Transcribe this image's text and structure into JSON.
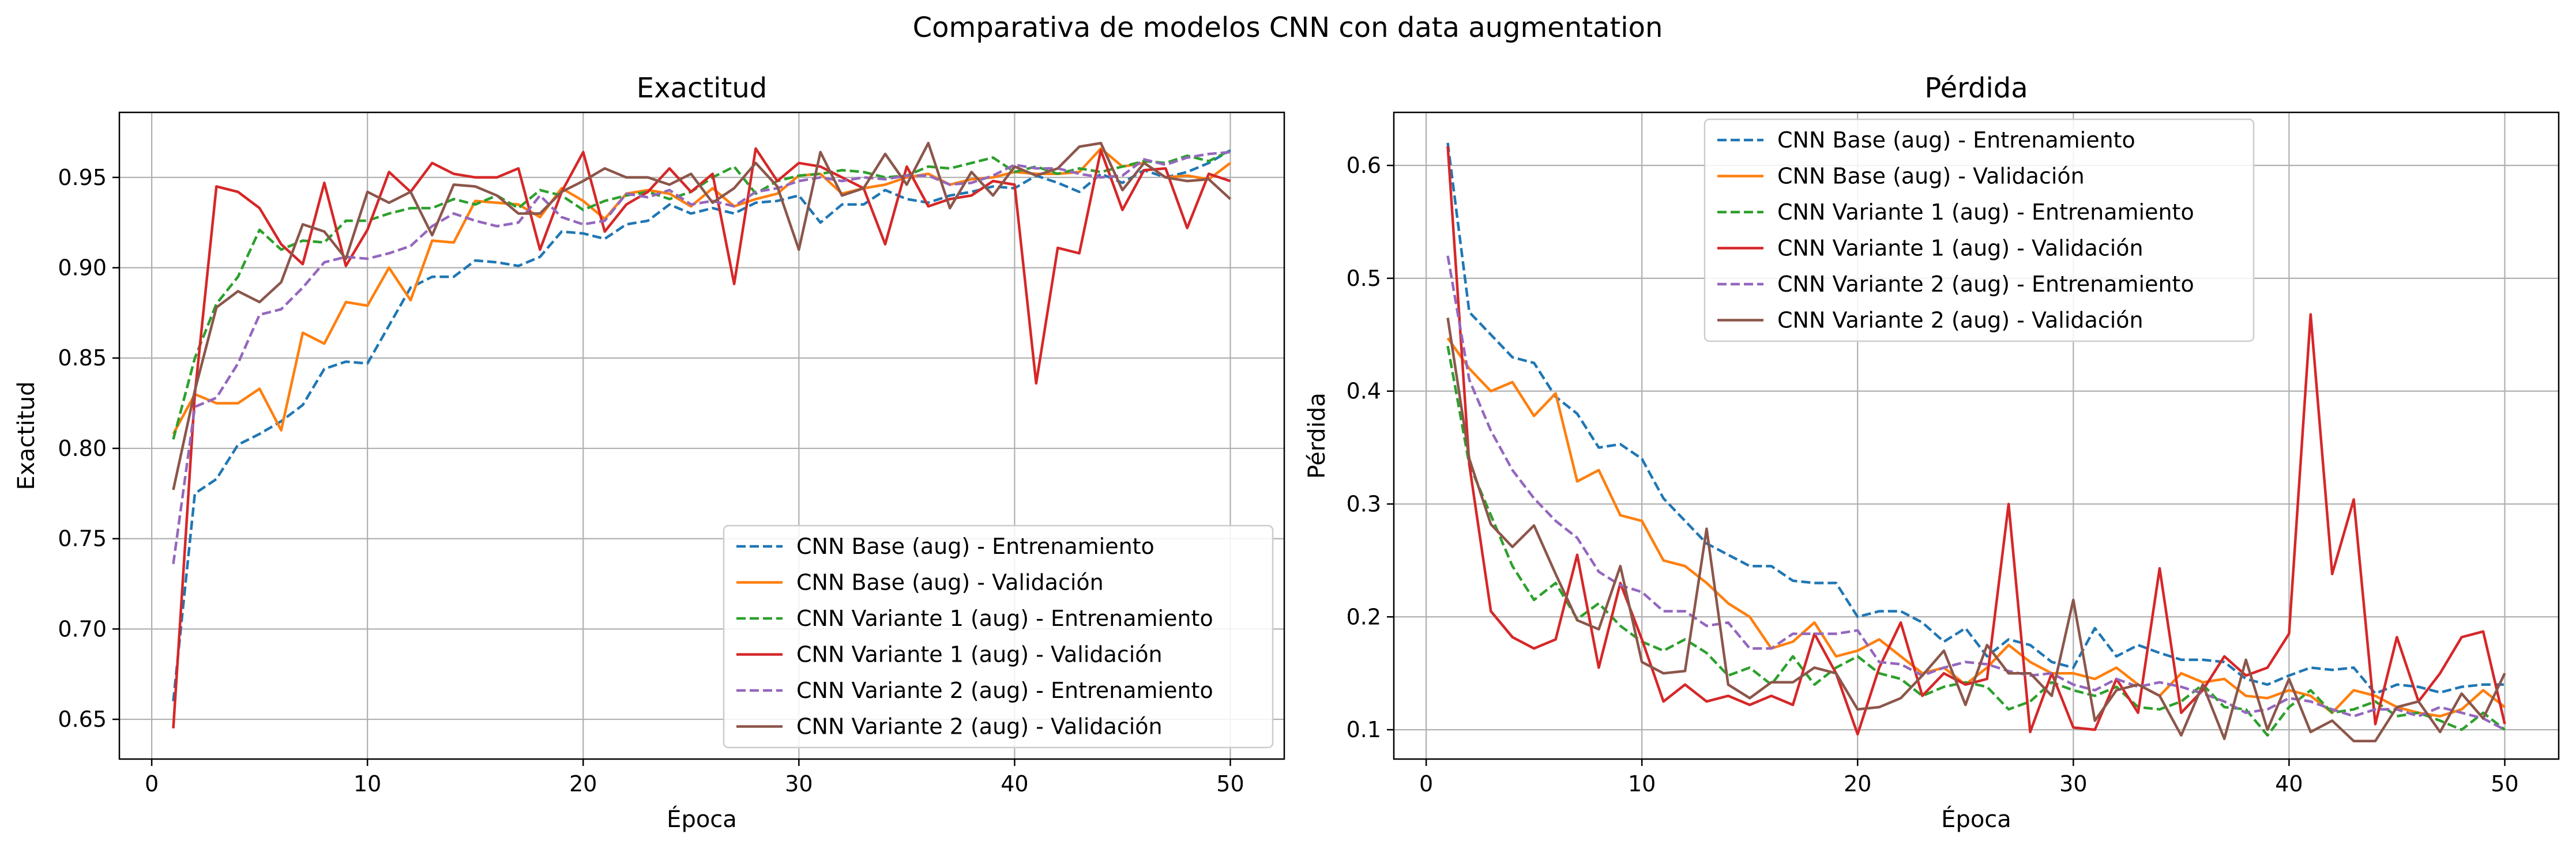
{
  "figure": {
    "suptitle": "Comparativa de modelos CNN con data augmentation"
  },
  "chart_data": [
    {
      "type": "line",
      "title": "Exactitud",
      "xlabel": "Época",
      "ylabel": "Exactitud",
      "xlim": [
        -1.5,
        52.5
      ],
      "ylim": [
        0.628,
        0.986
      ],
      "xticks": [
        0,
        10,
        20,
        30,
        40,
        50
      ],
      "yticks": [
        0.65,
        0.7,
        0.75,
        0.8,
        0.85,
        0.9,
        0.95
      ],
      "ytick_labels": [
        "0.65",
        "0.70",
        "0.75",
        "0.80",
        "0.85",
        "0.90",
        "0.95"
      ],
      "grid": true,
      "legend_position": "lower-right",
      "x": [
        1,
        2,
        3,
        4,
        5,
        6,
        7,
        8,
        9,
        10,
        11,
        12,
        13,
        14,
        15,
        16,
        17,
        18,
        19,
        20,
        21,
        22,
        23,
        24,
        25,
        26,
        27,
        28,
        29,
        30,
        31,
        32,
        33,
        34,
        35,
        36,
        37,
        38,
        39,
        40,
        41,
        42,
        43,
        44,
        45,
        46,
        47,
        48,
        49,
        50
      ],
      "series": [
        {
          "name": "CNN Base (aug) - Entrenamiento",
          "color": "#1f77b4",
          "dash": "dashed",
          "values": [
            0.66,
            0.775,
            0.783,
            0.802,
            0.808,
            0.815,
            0.824,
            0.844,
            0.848,
            0.847,
            0.868,
            0.889,
            0.895,
            0.895,
            0.904,
            0.903,
            0.901,
            0.906,
            0.92,
            0.919,
            0.916,
            0.924,
            0.926,
            0.935,
            0.93,
            0.933,
            0.93,
            0.936,
            0.937,
            0.94,
            0.925,
            0.935,
            0.935,
            0.943,
            0.938,
            0.936,
            0.94,
            0.942,
            0.945,
            0.944,
            0.951,
            0.947,
            0.942,
            0.952,
            0.947,
            0.954,
            0.95,
            0.953,
            0.958,
            0.965
          ]
        },
        {
          "name": "CNN Base (aug) - Validación",
          "color": "#ff7f0e",
          "dash": "solid",
          "values": [
            0.808,
            0.83,
            0.825,
            0.825,
            0.833,
            0.81,
            0.864,
            0.858,
            0.881,
            0.879,
            0.9,
            0.882,
            0.915,
            0.914,
            0.937,
            0.936,
            0.935,
            0.928,
            0.944,
            0.937,
            0.927,
            0.941,
            0.943,
            0.941,
            0.934,
            0.944,
            0.934,
            0.938,
            0.941,
            0.951,
            0.952,
            0.941,
            0.944,
            0.946,
            0.95,
            0.952,
            0.946,
            0.949,
            0.95,
            0.953,
            0.952,
            0.952,
            0.953,
            0.966,
            0.956,
            0.958,
            0.95,
            0.951,
            0.949,
            0.958
          ]
        },
        {
          "name": "CNN Variante 1 (aug) - Entrenamiento",
          "color": "#2ca02c",
          "dash": "dashed",
          "values": [
            0.805,
            0.85,
            0.88,
            0.895,
            0.921,
            0.91,
            0.915,
            0.914,
            0.926,
            0.926,
            0.93,
            0.933,
            0.933,
            0.938,
            0.935,
            0.94,
            0.933,
            0.943,
            0.94,
            0.932,
            0.937,
            0.94,
            0.942,
            0.938,
            0.942,
            0.95,
            0.956,
            0.941,
            0.948,
            0.951,
            0.952,
            0.954,
            0.953,
            0.95,
            0.951,
            0.956,
            0.955,
            0.958,
            0.961,
            0.953,
            0.956,
            0.952,
            0.955,
            0.953,
            0.956,
            0.959,
            0.958,
            0.962,
            0.959,
            0.965
          ]
        },
        {
          "name": "CNN Variante 1 (aug) - Validación",
          "color": "#d62728",
          "dash": "solid",
          "values": [
            0.645,
            0.83,
            0.945,
            0.942,
            0.933,
            0.913,
            0.902,
            0.947,
            0.901,
            0.921,
            0.953,
            0.942,
            0.958,
            0.952,
            0.95,
            0.95,
            0.955,
            0.91,
            0.942,
            0.964,
            0.92,
            0.935,
            0.942,
            0.955,
            0.942,
            0.952,
            0.891,
            0.966,
            0.948,
            0.958,
            0.956,
            0.95,
            0.944,
            0.913,
            0.956,
            0.934,
            0.938,
            0.94,
            0.948,
            0.946,
            0.836,
            0.911,
            0.908,
            0.965,
            0.932,
            0.954,
            0.955,
            0.922,
            0.952,
            0.948
          ]
        },
        {
          "name": "CNN Variante 2 (aug) - Entrenamiento",
          "color": "#9467bd",
          "dash": "dashed",
          "values": [
            0.736,
            0.823,
            0.828,
            0.847,
            0.874,
            0.877,
            0.889,
            0.903,
            0.906,
            0.905,
            0.908,
            0.912,
            0.923,
            0.93,
            0.926,
            0.923,
            0.925,
            0.94,
            0.928,
            0.924,
            0.926,
            0.941,
            0.939,
            0.943,
            0.935,
            0.937,
            0.934,
            0.942,
            0.944,
            0.948,
            0.95,
            0.948,
            0.95,
            0.949,
            0.951,
            0.951,
            0.946,
            0.947,
            0.951,
            0.957,
            0.955,
            0.955,
            0.952,
            0.95,
            0.951,
            0.96,
            0.957,
            0.961,
            0.963,
            0.964
          ]
        },
        {
          "name": "CNN Variante 2 (aug) - Validación",
          "color": "#8c564b",
          "dash": "solid",
          "values": [
            0.777,
            0.832,
            0.878,
            0.887,
            0.881,
            0.892,
            0.924,
            0.92,
            0.905,
            0.942,
            0.936,
            0.942,
            0.918,
            0.946,
            0.945,
            0.94,
            0.93,
            0.93,
            0.942,
            0.948,
            0.955,
            0.95,
            0.95,
            0.946,
            0.952,
            0.936,
            0.944,
            0.958,
            0.945,
            0.91,
            0.964,
            0.94,
            0.944,
            0.963,
            0.946,
            0.969,
            0.933,
            0.953,
            0.94,
            0.956,
            0.951,
            0.955,
            0.967,
            0.969,
            0.943,
            0.958,
            0.95,
            0.948,
            0.949,
            0.938
          ]
        }
      ]
    },
    {
      "type": "line",
      "title": "Pérdida",
      "xlabel": "Época",
      "ylabel": "Pérdida",
      "xlim": [
        -1.5,
        52.5
      ],
      "ylim": [
        0.074,
        0.647
      ],
      "xticks": [
        0,
        10,
        20,
        30,
        40,
        50
      ],
      "yticks": [
        0.1,
        0.2,
        0.3,
        0.4,
        0.5,
        0.6
      ],
      "ytick_labels": [
        "0.1",
        "0.2",
        "0.3",
        "0.4",
        "0.5",
        "0.6"
      ],
      "grid": true,
      "legend_position": "upper-center",
      "x": [
        1,
        2,
        3,
        4,
        5,
        6,
        7,
        8,
        9,
        10,
        11,
        12,
        13,
        14,
        15,
        16,
        17,
        18,
        19,
        20,
        21,
        22,
        23,
        24,
        25,
        26,
        27,
        28,
        29,
        30,
        31,
        32,
        33,
        34,
        35,
        36,
        37,
        38,
        39,
        40,
        41,
        42,
        43,
        44,
        45,
        46,
        47,
        48,
        49,
        50
      ],
      "series": [
        {
          "name": "CNN Base (aug) - Entrenamiento",
          "color": "#1f77b4",
          "dash": "dashed",
          "values": [
            0.62,
            0.47,
            0.45,
            0.43,
            0.425,
            0.395,
            0.38,
            0.35,
            0.353,
            0.34,
            0.305,
            0.285,
            0.265,
            0.255,
            0.245,
            0.245,
            0.232,
            0.23,
            0.23,
            0.2,
            0.205,
            0.205,
            0.195,
            0.178,
            0.19,
            0.165,
            0.18,
            0.175,
            0.16,
            0.155,
            0.19,
            0.165,
            0.175,
            0.168,
            0.162,
            0.162,
            0.16,
            0.145,
            0.14,
            0.148,
            0.155,
            0.153,
            0.155,
            0.132,
            0.14,
            0.138,
            0.133,
            0.138,
            0.14,
            0.14
          ]
        },
        {
          "name": "CNN Base (aug) - Validación",
          "color": "#ff7f0e",
          "dash": "solid",
          "values": [
            0.447,
            0.42,
            0.4,
            0.408,
            0.378,
            0.398,
            0.32,
            0.33,
            0.29,
            0.285,
            0.25,
            0.245,
            0.23,
            0.212,
            0.2,
            0.172,
            0.178,
            0.195,
            0.165,
            0.17,
            0.18,
            0.165,
            0.15,
            0.155,
            0.14,
            0.155,
            0.175,
            0.16,
            0.15,
            0.15,
            0.145,
            0.155,
            0.14,
            0.13,
            0.15,
            0.142,
            0.145,
            0.13,
            0.128,
            0.135,
            0.13,
            0.115,
            0.135,
            0.13,
            0.12,
            0.115,
            0.112,
            0.118,
            0.135,
            0.12
          ]
        },
        {
          "name": "CNN Variante 1 (aug) - Entrenamiento",
          "color": "#2ca02c",
          "dash": "dashed",
          "values": [
            0.44,
            0.335,
            0.29,
            0.245,
            0.215,
            0.23,
            0.198,
            0.212,
            0.192,
            0.178,
            0.17,
            0.18,
            0.168,
            0.148,
            0.155,
            0.14,
            0.165,
            0.14,
            0.155,
            0.165,
            0.15,
            0.145,
            0.13,
            0.138,
            0.142,
            0.138,
            0.118,
            0.125,
            0.142,
            0.135,
            0.13,
            0.138,
            0.12,
            0.118,
            0.125,
            0.14,
            0.12,
            0.118,
            0.095,
            0.12,
            0.135,
            0.115,
            0.118,
            0.125,
            0.112,
            0.115,
            0.108,
            0.1,
            0.115,
            0.1
          ]
        },
        {
          "name": "CNN Variante 1 (aug) - Validación",
          "color": "#d62728",
          "dash": "solid",
          "values": [
            0.617,
            0.335,
            0.205,
            0.182,
            0.172,
            0.18,
            0.255,
            0.155,
            0.23,
            0.18,
            0.125,
            0.14,
            0.125,
            0.13,
            0.122,
            0.13,
            0.122,
            0.185,
            0.15,
            0.096,
            0.155,
            0.195,
            0.13,
            0.15,
            0.14,
            0.145,
            0.3,
            0.098,
            0.15,
            0.102,
            0.1,
            0.145,
            0.115,
            0.243,
            0.115,
            0.135,
            0.165,
            0.148,
            0.155,
            0.185,
            0.468,
            0.238,
            0.304,
            0.105,
            0.182,
            0.125,
            0.15,
            0.182,
            0.187,
            0.105
          ]
        },
        {
          "name": "CNN Variante 2 (aug) - Entrenamiento",
          "color": "#9467bd",
          "dash": "dashed",
          "values": [
            0.52,
            0.41,
            0.365,
            0.33,
            0.305,
            0.285,
            0.27,
            0.24,
            0.228,
            0.222,
            0.205,
            0.205,
            0.192,
            0.195,
            0.172,
            0.172,
            0.185,
            0.185,
            0.185,
            0.188,
            0.16,
            0.158,
            0.148,
            0.155,
            0.16,
            0.158,
            0.152,
            0.148,
            0.15,
            0.14,
            0.135,
            0.145,
            0.138,
            0.142,
            0.138,
            0.132,
            0.125,
            0.115,
            0.118,
            0.128,
            0.125,
            0.118,
            0.112,
            0.118,
            0.118,
            0.112,
            0.12,
            0.115,
            0.11,
            0.1
          ]
        },
        {
          "name": "CNN Variante 2 (aug) - Validación",
          "color": "#8c564b",
          "dash": "solid",
          "values": [
            0.465,
            0.34,
            0.282,
            0.262,
            0.281,
            0.238,
            0.197,
            0.189,
            0.245,
            0.16,
            0.15,
            0.152,
            0.278,
            0.14,
            0.128,
            0.142,
            0.142,
            0.155,
            0.15,
            0.118,
            0.12,
            0.128,
            0.148,
            0.17,
            0.122,
            0.175,
            0.15,
            0.15,
            0.13,
            0.215,
            0.108,
            0.135,
            0.14,
            0.13,
            0.095,
            0.14,
            0.092,
            0.162,
            0.1,
            0.145,
            0.098,
            0.108,
            0.09,
            0.09,
            0.12,
            0.125,
            0.098,
            0.132,
            0.11,
            0.15
          ]
        }
      ]
    }
  ]
}
